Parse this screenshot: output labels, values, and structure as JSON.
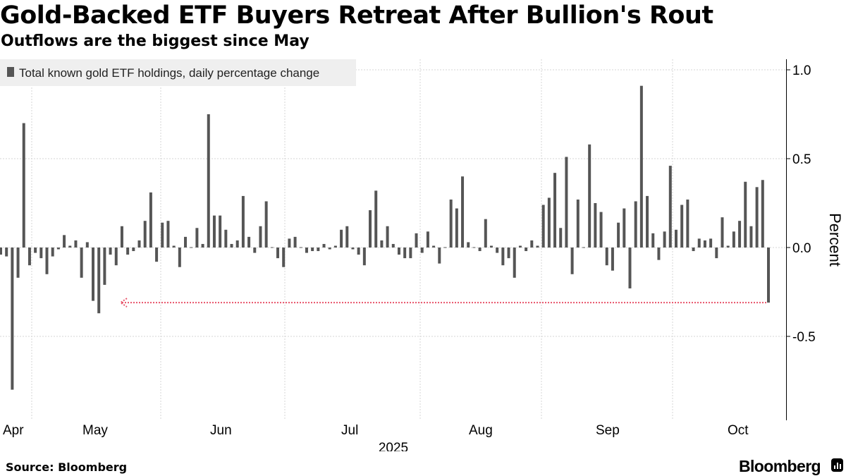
{
  "header": {
    "title": "Gold-Backed ETF Buyers Retreat After Bullion's Rout",
    "subtitle": "Outflows are the biggest since May"
  },
  "footer": {
    "source": "Source: Bloomberg",
    "brand": "Bloomberg"
  },
  "colors": {
    "bar": "#555555",
    "annotation": "#e8546a",
    "grid": "#d6d6d6"
  },
  "chart_data": {
    "type": "bar",
    "title": "Gold-Backed ETF Buyers Retreat After Bullion's Rout",
    "subtitle": "Outflows are the biggest since May",
    "legend": [
      "Total known gold ETF holdings, daily percentage change"
    ],
    "legend_position": "top-left",
    "ylabel": "Percent",
    "ylim": [
      -0.97,
      1.07
    ],
    "yticks": [
      1.0,
      0.5,
      0.0,
      -0.5
    ],
    "ytick_labels": [
      "1.0",
      "0.5",
      "0.0",
      "-0.5"
    ],
    "y_axis_side": "right",
    "grid": true,
    "x_month_labels": [
      "Apr",
      "May",
      "Jun",
      "Jul",
      "Aug",
      "Sep",
      "Oct"
    ],
    "x_year_label": "2025",
    "annotation": {
      "type": "dotted-arrow",
      "value": -0.31,
      "description_visible": false
    },
    "values": [
      -0.04,
      -0.05,
      -0.8,
      -0.17,
      0.7,
      -0.1,
      -0.03,
      -0.06,
      -0.15,
      -0.05,
      -0.01,
      0.07,
      0.01,
      0.04,
      -0.17,
      0.03,
      -0.3,
      -0.37,
      -0.21,
      -0.04,
      -0.1,
      0.12,
      -0.04,
      -0.02,
      0.04,
      0.15,
      0.31,
      -0.08,
      0.14,
      0.15,
      0.01,
      -0.11,
      0.06,
      0.0,
      0.11,
      0.02,
      0.75,
      0.18,
      0.18,
      0.1,
      0.02,
      0.04,
      0.29,
      0.06,
      -0.03,
      0.12,
      0.26,
      0.0,
      -0.06,
      -0.11,
      0.05,
      0.06,
      0.0,
      -0.03,
      -0.02,
      -0.02,
      0.02,
      -0.01,
      0.01,
      0.1,
      0.12,
      -0.01,
      -0.04,
      -0.1,
      0.21,
      0.32,
      0.04,
      0.12,
      0.02,
      -0.04,
      -0.06,
      -0.06,
      0.08,
      -0.03,
      0.09,
      0.01,
      -0.09,
      0.0,
      0.27,
      0.22,
      0.4,
      0.03,
      0.0,
      -0.02,
      0.16,
      0.01,
      -0.03,
      -0.1,
      -0.06,
      -0.17,
      0.01,
      -0.02,
      0.04,
      0.01,
      0.24,
      0.28,
      0.42,
      0.11,
      0.51,
      -0.15,
      0.27,
      0.0,
      0.58,
      0.25,
      0.2,
      -0.1,
      -0.13,
      0.14,
      0.22,
      -0.23,
      0.26,
      0.91,
      0.29,
      0.08,
      -0.07,
      0.09,
      0.46,
      0.1,
      0.24,
      0.27,
      -0.02,
      0.05,
      0.04,
      0.05,
      -0.06,
      0.17,
      0.01,
      0.09,
      0.15,
      0.37,
      0.12,
      0.34,
      0.38,
      -0.31
    ]
  }
}
